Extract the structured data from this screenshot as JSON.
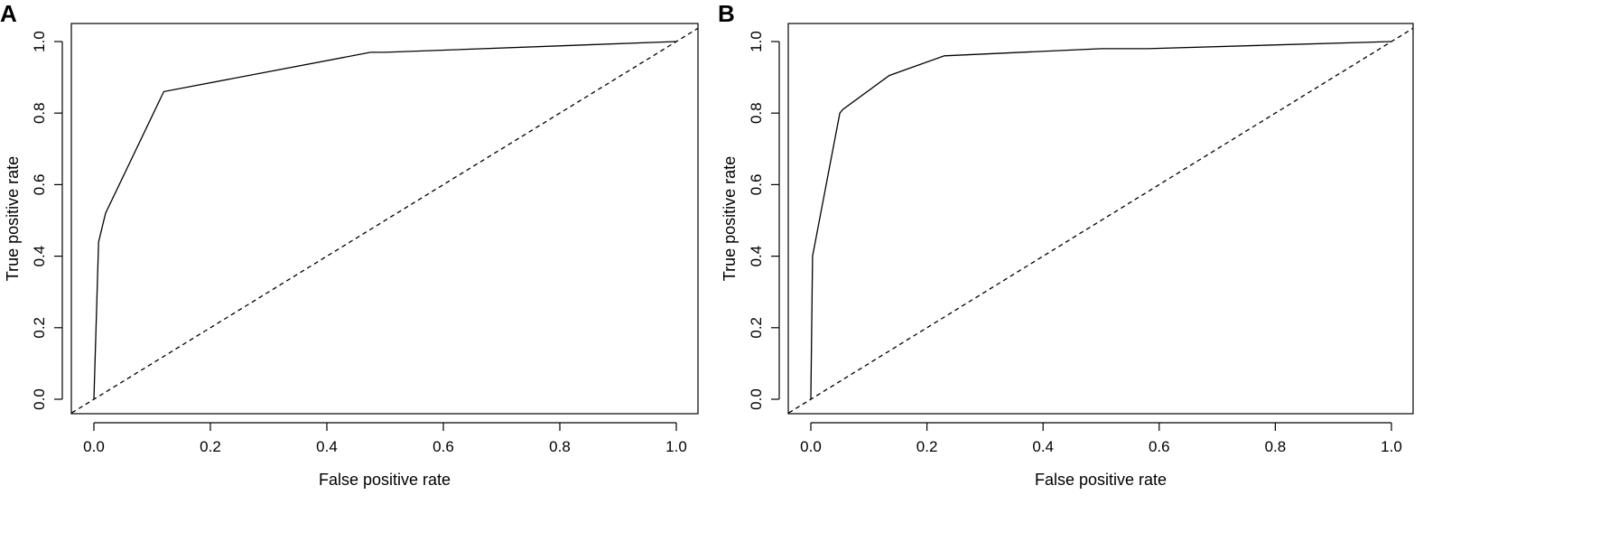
{
  "chart_data": [
    {
      "type": "line",
      "panel": "A",
      "xlabel": "False positive rate",
      "ylabel": "True positive rate",
      "xlim": [
        0.0,
        1.0
      ],
      "ylim": [
        0.0,
        1.0
      ],
      "xticks": [
        "0.0",
        "0.2",
        "0.4",
        "0.6",
        "0.8",
        "1.0"
      ],
      "yticks": [
        "0.0",
        "0.2",
        "0.4",
        "0.6",
        "0.8",
        "1.0"
      ],
      "grid": false,
      "series": [
        {
          "style": "solid",
          "x": [
            0.0,
            0.008,
            0.02,
            0.12,
            0.475,
            0.5,
            1.0
          ],
          "y": [
            0.0,
            0.44,
            0.52,
            0.86,
            0.97,
            0.97,
            1.0
          ]
        },
        {
          "style": "dashed",
          "x": [
            0.0,
            1.0
          ],
          "y": [
            0.0,
            1.0
          ]
        }
      ]
    },
    {
      "type": "line",
      "panel": "B",
      "xlabel": "False positive rate",
      "ylabel": "True positive rate",
      "xlim": [
        0.0,
        1.0
      ],
      "ylim": [
        0.0,
        1.0
      ],
      "xticks": [
        "0.0",
        "0.2",
        "0.4",
        "0.6",
        "0.8",
        "1.0"
      ],
      "yticks": [
        "0.0",
        "0.2",
        "0.4",
        "0.6",
        "0.8",
        "1.0"
      ],
      "grid": false,
      "series": [
        {
          "style": "solid",
          "x": [
            0.0,
            0.003,
            0.05,
            0.055,
            0.135,
            0.23,
            0.5,
            0.58,
            1.0
          ],
          "y": [
            0.0,
            0.4,
            0.8,
            0.81,
            0.905,
            0.96,
            0.98,
            0.98,
            1.0
          ]
        },
        {
          "style": "dashed",
          "x": [
            0.0,
            1.0
          ],
          "y": [
            0.0,
            1.0
          ]
        }
      ]
    }
  ]
}
